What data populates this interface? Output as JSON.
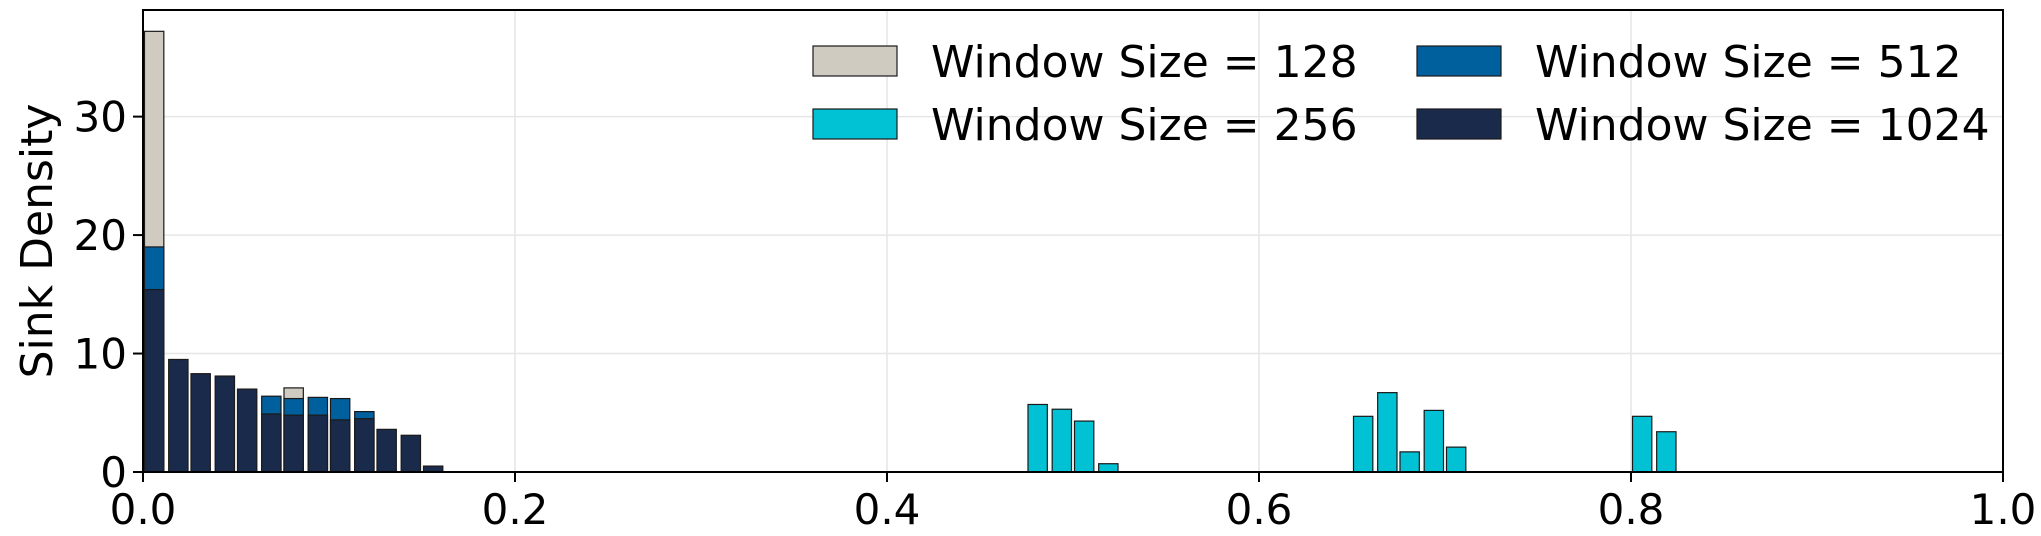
{
  "chart_data": {
    "type": "bar",
    "ylabel": "Sink Density",
    "xlim": [
      0.0,
      1.0
    ],
    "ylim": [
      0,
      39
    ],
    "grid": true,
    "legend_position": "top-right",
    "xticks": [
      "0.0",
      "0.2",
      "0.4",
      "0.6",
      "0.8",
      "1.0"
    ],
    "xtick_values": [
      0.0,
      0.2,
      0.4,
      0.6,
      0.8,
      1.0
    ],
    "yticks": [
      "0",
      "10",
      "20",
      "30"
    ],
    "ytick_values": [
      0,
      10,
      20,
      30
    ],
    "series": [
      {
        "name": "Window Size = 128",
        "color": "#cfcbc0",
        "points": [
          [
            0.006,
            37.2
          ],
          [
            0.081,
            7.1
          ]
        ]
      },
      {
        "name": "Window Size = 256",
        "color": "#00c2d4",
        "points": [
          [
            0.481,
            5.7
          ],
          [
            0.494,
            5.3
          ],
          [
            0.506,
            4.3
          ],
          [
            0.519,
            0.7
          ],
          [
            0.656,
            4.7
          ],
          [
            0.669,
            6.7
          ],
          [
            0.681,
            1.7
          ],
          [
            0.694,
            5.2
          ],
          [
            0.706,
            2.1
          ],
          [
            0.806,
            4.7
          ],
          [
            0.819,
            3.4
          ]
        ]
      },
      {
        "name": "Window Size = 512",
        "color": "#00609e",
        "points": [
          [
            0.006,
            19.0
          ],
          [
            0.069,
            6.4
          ],
          [
            0.081,
            6.2
          ],
          [
            0.094,
            6.3
          ],
          [
            0.106,
            6.2
          ],
          [
            0.119,
            5.1
          ]
        ]
      },
      {
        "name": "Window Size = 1024",
        "color": "#1a2a4a",
        "points": [
          [
            0.006,
            15.4
          ],
          [
            0.019,
            9.5
          ],
          [
            0.031,
            8.3
          ],
          [
            0.044,
            8.1
          ],
          [
            0.056,
            7.0
          ],
          [
            0.069,
            4.9
          ],
          [
            0.081,
            4.8
          ],
          [
            0.094,
            4.8
          ],
          [
            0.106,
            4.4
          ],
          [
            0.119,
            4.5
          ],
          [
            0.131,
            3.6
          ],
          [
            0.144,
            3.1
          ],
          [
            0.156,
            0.5
          ]
        ]
      }
    ]
  }
}
